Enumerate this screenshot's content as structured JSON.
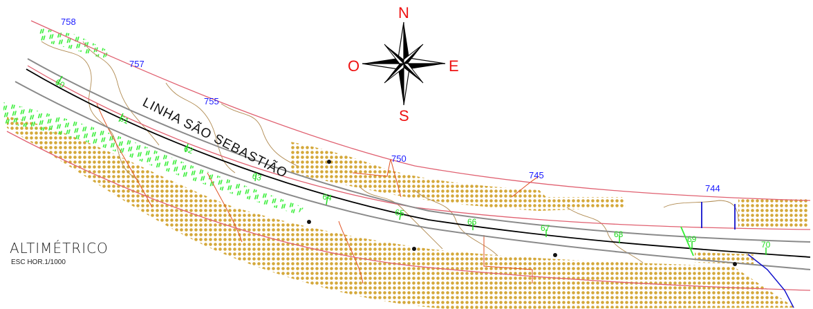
{
  "map": {
    "road_name": "LINHA SÃO SEBASTIÃO",
    "contour_labels": [
      "758",
      "757",
      "755",
      "750",
      "745",
      "744"
    ],
    "station_labels": [
      "60",
      "61",
      "62",
      "63",
      "64",
      "65",
      "66",
      "67",
      "68",
      "69",
      "70"
    ],
    "compass": {
      "north": "N",
      "south": "S",
      "east": "E",
      "west": "O"
    },
    "title": "ALTIMÉTRICO",
    "scale": "ESC HOR.1/1000",
    "colors": {
      "contour_label": "#1a1aff",
      "station_label": "#22dd22",
      "compass_letter": "#ee1111",
      "vegetation_fill": "#d4a83a",
      "grass_fill": "#33ee33",
      "road_edge": "#e06070",
      "centerline": "#000000",
      "road_lane": "#888888",
      "terrain_contour": "#b08a50",
      "drainage": "#e05020",
      "water": "#1010cc"
    }
  }
}
